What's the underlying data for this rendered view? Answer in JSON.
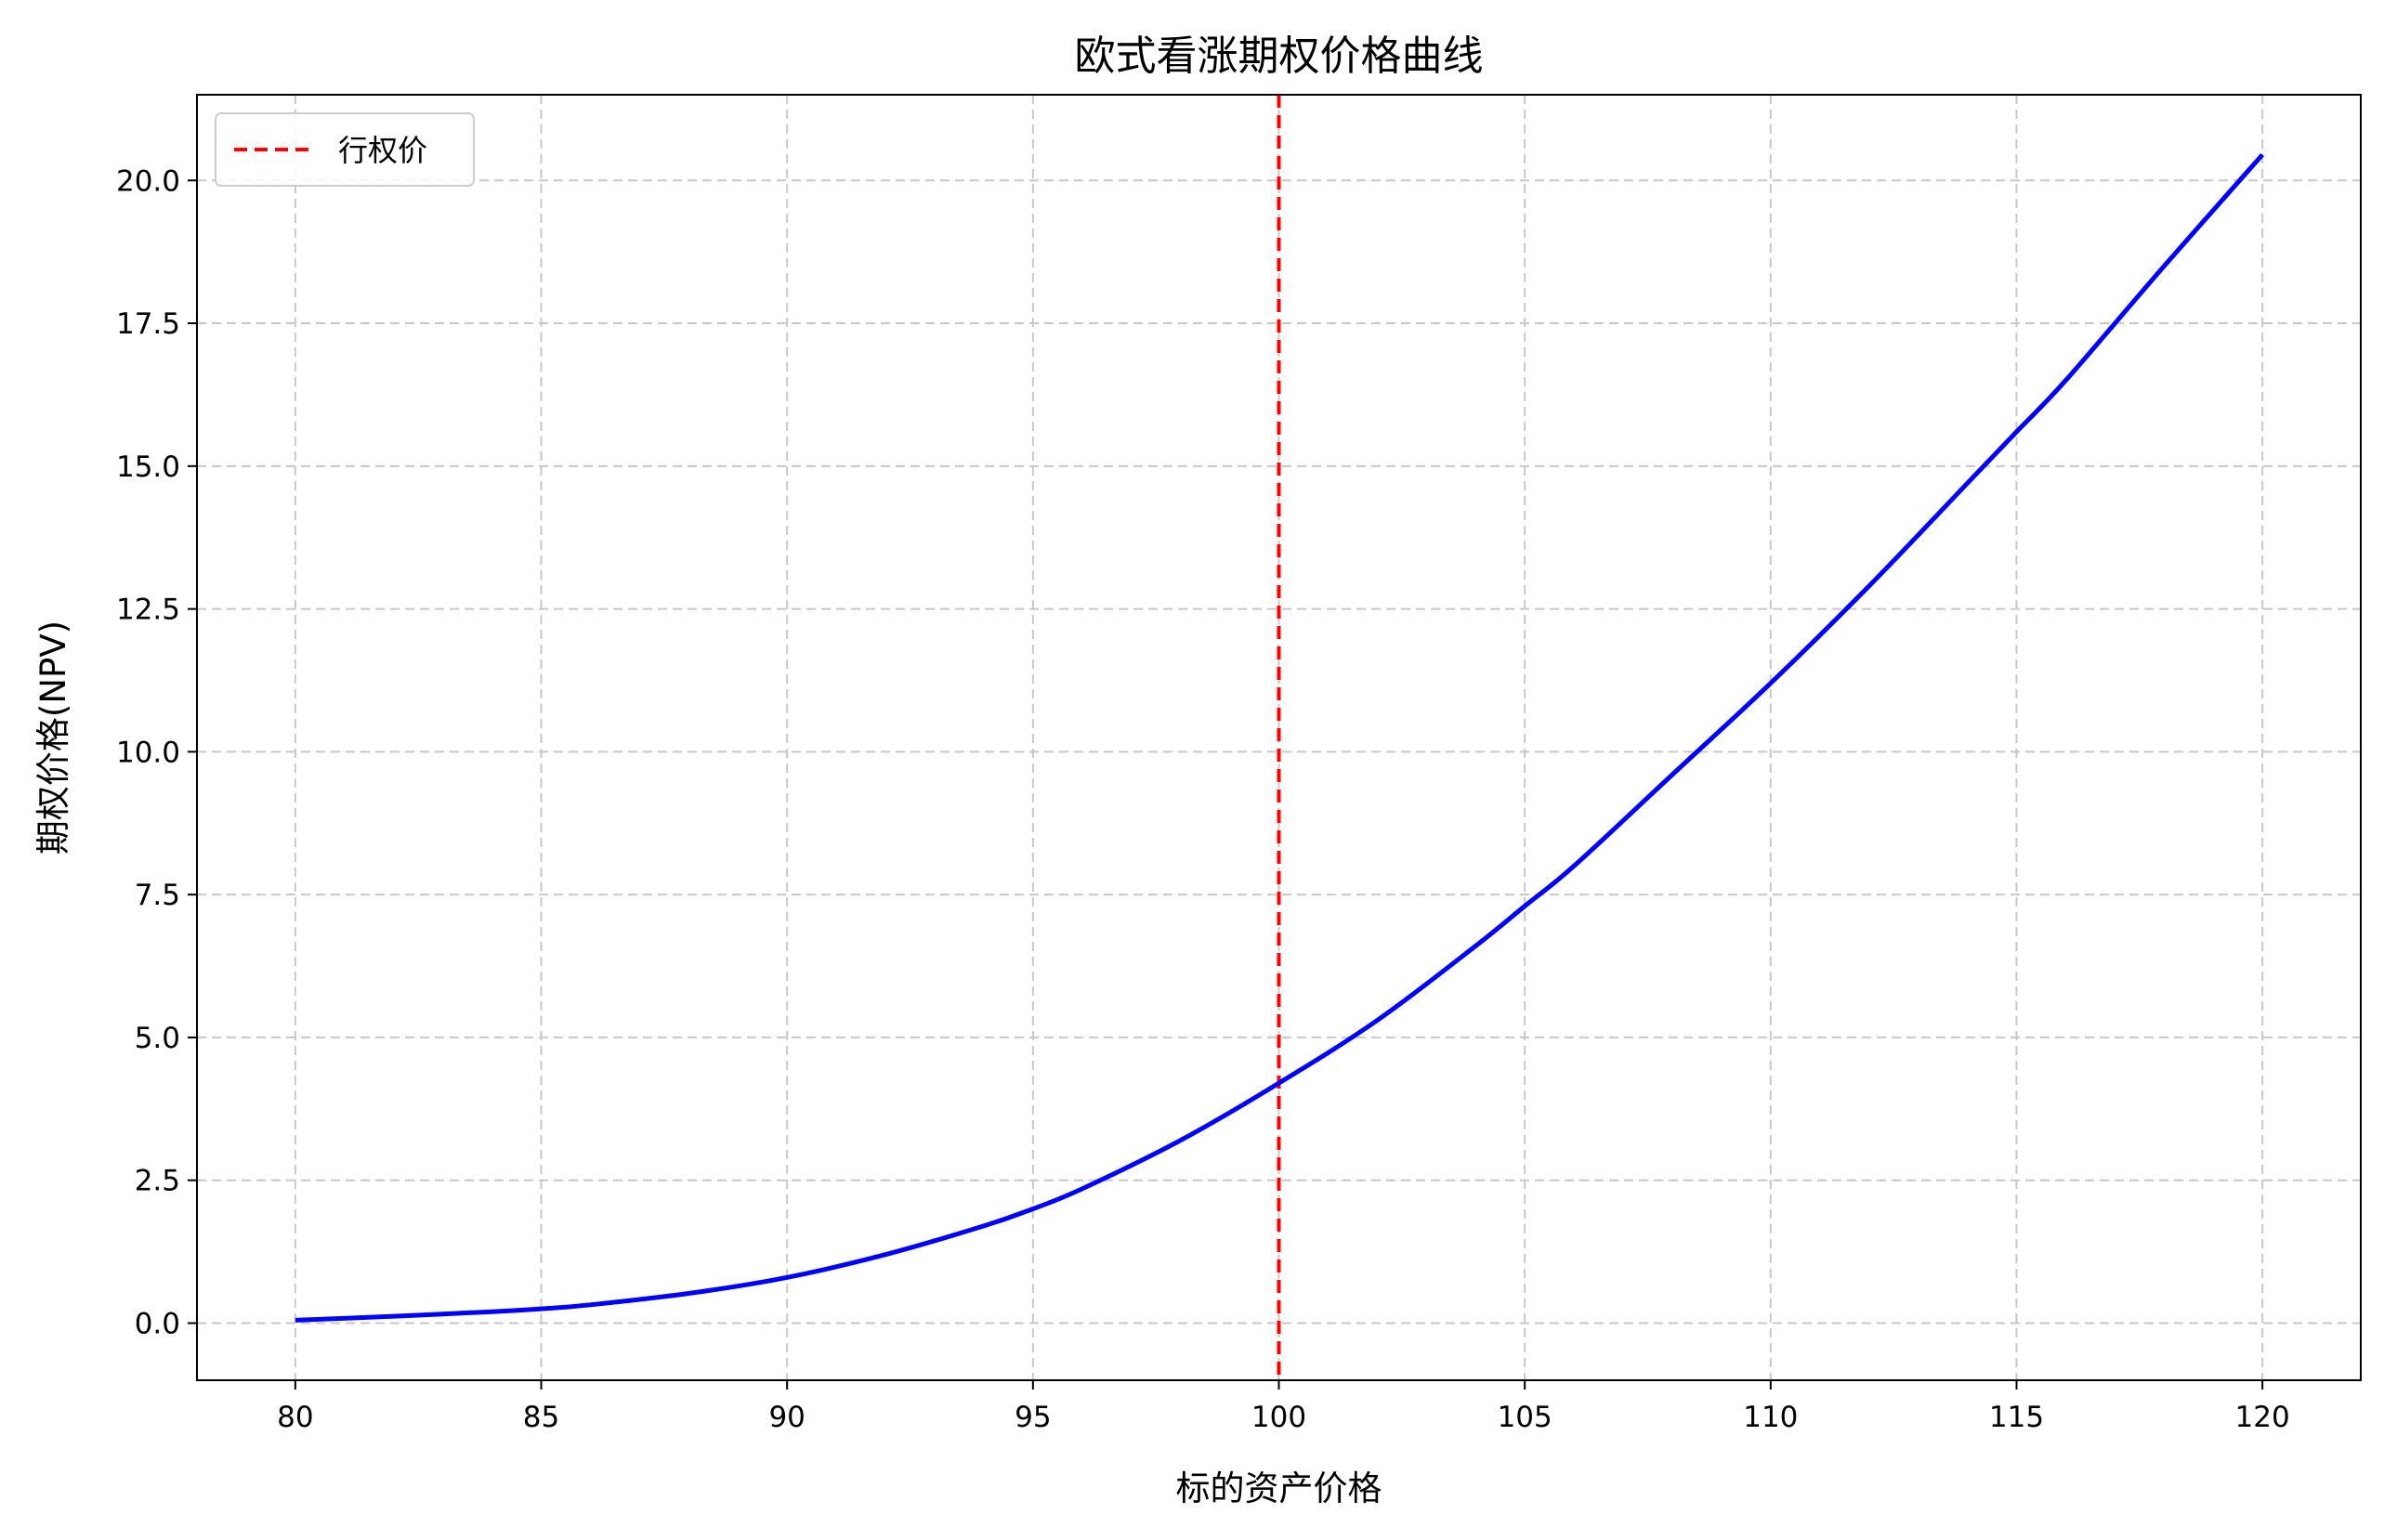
{
  "chart_data": {
    "type": "line",
    "title": "欧式看涨期权价格曲线",
    "xlabel": "标的资产价格",
    "ylabel": "期权价格(NPV)",
    "xlim": [
      78,
      122
    ],
    "ylim": [
      -1.0,
      21.5
    ],
    "xticks": [
      80,
      85,
      90,
      95,
      100,
      105,
      110,
      115,
      120
    ],
    "yticks": [
      0.0,
      2.5,
      5.0,
      7.5,
      10.0,
      12.5,
      15.0,
      17.5,
      20.0
    ],
    "xtick_labels": [
      "80",
      "85",
      "90",
      "95",
      "100",
      "105",
      "110",
      "115",
      "120"
    ],
    "ytick_labels": [
      "0.0",
      "2.5",
      "5.0",
      "7.5",
      "10.0",
      "12.5",
      "15.0",
      "17.5",
      "20.0"
    ],
    "grid": true,
    "legend_position": "top-left",
    "series": [
      {
        "color": "#0000ff",
        "x": [
          80,
          82,
          84,
          85,
          86,
          88,
          90,
          92,
          94,
          95,
          96,
          98,
          100,
          102,
          104,
          105,
          106,
          108,
          110,
          112,
          114,
          115,
          116,
          118,
          120
        ],
        "y": [
          0.05,
          0.12,
          0.2,
          0.25,
          0.32,
          0.52,
          0.8,
          1.2,
          1.7,
          2.0,
          2.35,
          3.2,
          4.2,
          5.3,
          6.6,
          7.3,
          8.0,
          9.6,
          11.2,
          12.9,
          14.7,
          15.6,
          16.5,
          18.5,
          20.45
        ]
      }
    ],
    "reference_lines": [
      {
        "name": "行权价",
        "x": 100,
        "color": "#ff0000",
        "style": "dashed"
      }
    ]
  }
}
